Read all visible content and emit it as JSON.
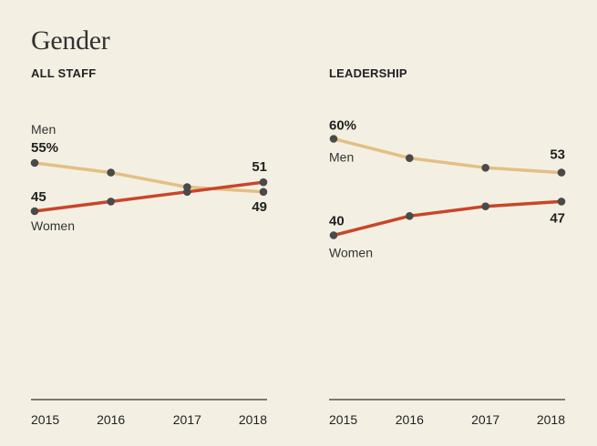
{
  "title": "Gender",
  "colors": {
    "men": "#e3bf85",
    "women": "#c9452a",
    "point": "#4a4a4a",
    "axis": "#333333"
  },
  "chart_data": [
    {
      "type": "line",
      "title": "ALL STAFF",
      "x": [
        "2015",
        "2016",
        "2017",
        "2018"
      ],
      "ylim": [
        20,
        80
      ],
      "grid": false,
      "series": [
        {
          "name": "Men",
          "values": [
            55,
            53,
            50,
            49
          ],
          "start_label": "55%",
          "end_label": "49"
        },
        {
          "name": "Women",
          "values": [
            45,
            47,
            49,
            51
          ],
          "start_label": "45",
          "end_label": "51"
        }
      ]
    },
    {
      "type": "line",
      "title": "LEADERSHIP",
      "x": [
        "2015",
        "2016",
        "2017",
        "2018"
      ],
      "ylim": [
        20,
        80
      ],
      "grid": false,
      "series": [
        {
          "name": "Men",
          "values": [
            60,
            56,
            54,
            53
          ],
          "start_label": "60%",
          "end_label": "53"
        },
        {
          "name": "Women",
          "values": [
            40,
            44,
            46,
            47
          ],
          "start_label": "40",
          "end_label": "47"
        }
      ]
    }
  ]
}
